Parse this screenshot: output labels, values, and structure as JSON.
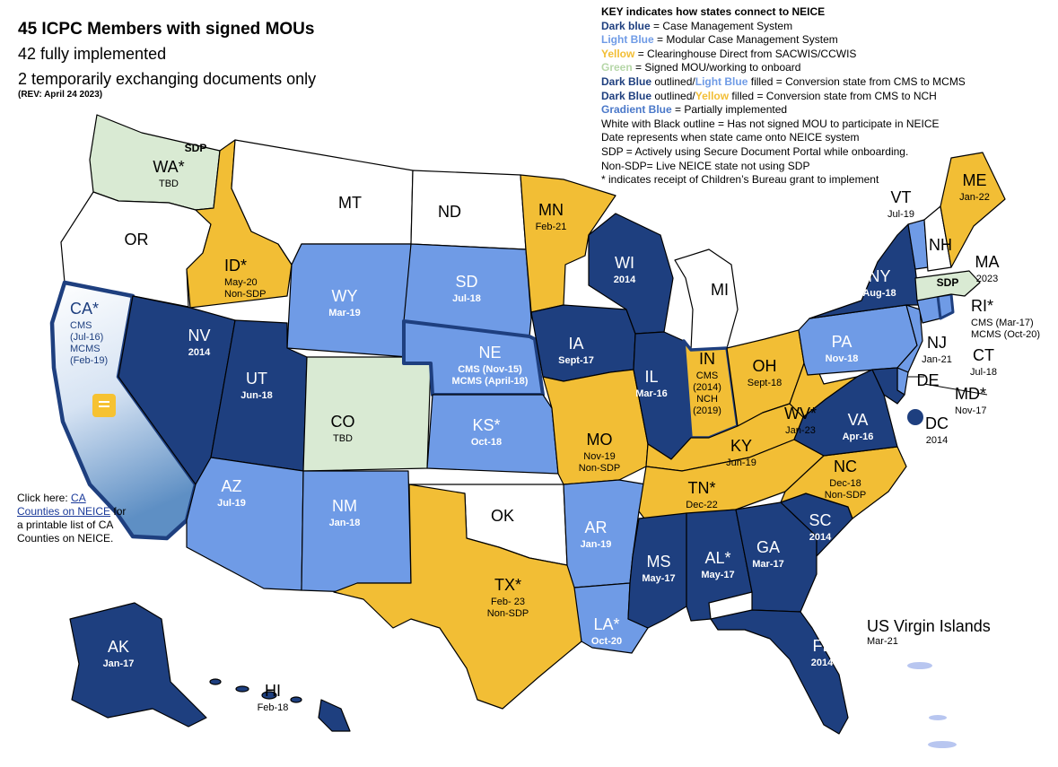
{
  "header": {
    "title": "45 ICPC Members with signed MOUs",
    "line1": "42 fully implemented",
    "line2": "2 temporarily exchanging documents only",
    "rev": "(REV: April 24 2023)"
  },
  "colors": {
    "dark_blue": "#1e3f7f",
    "light_blue": "#6f9be6",
    "yellow": "#f2be35",
    "green": "#d9ead3",
    "white": "#ffffff",
    "border": "#000000"
  },
  "key": {
    "heading": "KEY indicates how states connect to NEICE",
    "rows": [
      {
        "pre": "Dark blue",
        "pre_color": "#1e3f7f",
        "text": " = Case Management System"
      },
      {
        "pre": "Light Blue",
        "pre_color": "#6f9be6",
        "text": " = Modular Case Management System"
      },
      {
        "pre": "Yellow",
        "pre_color": "#f2be35",
        "text": " = Clearinghouse Direct from SACWIS/CCWIS"
      },
      {
        "pre": "Green",
        "pre_color": "#b6d7a8",
        "text": " = Signed MOU/working to onboard"
      },
      {
        "pre": "Dark Blue",
        "pre_color": "#1e3f7f",
        "mid": " outlined/",
        "pre2": "Light Blue",
        "pre2_color": "#6f9be6",
        "text": " filled = Conversion state from CMS to MCMS"
      },
      {
        "pre": "Dark Blue",
        "pre_color": "#1e3f7f",
        "mid": " outlined/",
        "pre2": "Yellow",
        "pre2_color": "#f2be35",
        "text": " filled = Conversion state from CMS to NCH"
      },
      {
        "pre": "Gradient Blue",
        "pre_color": "#4a78c9",
        "text": " = Partially implemented"
      },
      {
        "text": "White with Black outline = Has not  signed MOU to participate in NEICE"
      },
      {
        "text": "Date represents when state came onto NEICE system"
      },
      {
        "text": "SDP = Actively using Secure Document Portal while onboarding."
      },
      {
        "text": "Non-SDP= Live NEICE state not using SDP"
      },
      {
        "text": "* indicates receipt of Children’s Bureau grant to implement"
      }
    ]
  },
  "note": {
    "pre": "Click here: ",
    "link": "CA Counties on NEICE",
    "post": " for a printable list of CA Counties on NEICE."
  },
  "usvi": {
    "name": "US Virgin Islands",
    "date": "Mar-21"
  },
  "sdp_tag": "SDP",
  "states": {
    "WA": {
      "name": "WA*",
      "lines": [
        "TBD"
      ]
    },
    "OR": {
      "name": "OR",
      "lines": []
    },
    "CA": {
      "name": "CA*",
      "lines": [
        "CMS",
        "(Jul-16)",
        "MCMS",
        "(Feb-19)"
      ]
    },
    "ID": {
      "name": "ID*",
      "lines": [
        "May-20",
        "Non-SDP"
      ]
    },
    "NV": {
      "name": "NV",
      "lines": [
        "2014"
      ]
    },
    "MT": {
      "name": "MT",
      "lines": []
    },
    "WY": {
      "name": "WY",
      "lines": [
        "Mar-19"
      ]
    },
    "UT": {
      "name": "UT",
      "lines": [
        "Jun-18"
      ]
    },
    "CO": {
      "name": "CO",
      "lines": [
        "TBD"
      ]
    },
    "AZ": {
      "name": "AZ",
      "lines": [
        "Jul-19"
      ]
    },
    "NM": {
      "name": "NM",
      "lines": [
        "Jan-18"
      ]
    },
    "ND": {
      "name": "ND",
      "lines": []
    },
    "SD": {
      "name": "SD",
      "lines": [
        "Jul-18"
      ]
    },
    "NE": {
      "name": "NE",
      "lines": [
        "CMS (Nov-15)",
        "MCMS (April-18)"
      ]
    },
    "KS": {
      "name": "KS*",
      "lines": [
        "Oct-18"
      ]
    },
    "OK": {
      "name": "OK",
      "lines": []
    },
    "TX": {
      "name": "TX*",
      "lines": [
        "Feb- 23",
        "Non-SDP"
      ]
    },
    "MN": {
      "name": "MN",
      "lines": [
        "Feb-21"
      ]
    },
    "IA": {
      "name": "IA",
      "lines": [
        "Sept-17"
      ]
    },
    "MO": {
      "name": "MO",
      "lines": [
        "Nov-19",
        "Non-SDP"
      ]
    },
    "AR": {
      "name": "AR",
      "lines": [
        "Jan-19"
      ]
    },
    "LA": {
      "name": "LA*",
      "lines": [
        "Oct-20"
      ]
    },
    "WI": {
      "name": "WI",
      "lines": [
        "2014"
      ]
    },
    "IL": {
      "name": "IL",
      "lines": [
        "Mar-16"
      ]
    },
    "MI": {
      "name": "MI",
      "lines": []
    },
    "IN": {
      "name": "IN",
      "lines": [
        "CMS",
        "(2014)",
        "NCH",
        "(2019)"
      ]
    },
    "OH": {
      "name": "OH",
      "lines": [
        "Sept-18"
      ]
    },
    "KY": {
      "name": "KY",
      "lines": [
        "Jun-19"
      ]
    },
    "TN": {
      "name": "TN*",
      "lines": [
        "Dec-22"
      ]
    },
    "MS": {
      "name": "MS",
      "lines": [
        "May-17"
      ]
    },
    "AL": {
      "name": "AL*",
      "lines": [
        "May-17"
      ]
    },
    "GA": {
      "name": "GA",
      "lines": [
        "Mar-17"
      ]
    },
    "FL": {
      "name": "FL",
      "lines": [
        "2014"
      ]
    },
    "SC": {
      "name": "SC",
      "lines": [
        "2014"
      ]
    },
    "NC": {
      "name": "NC",
      "lines": [
        "Dec-18",
        "Non-SDP"
      ]
    },
    "VA": {
      "name": "VA",
      "lines": [
        "Apr-16"
      ]
    },
    "WV": {
      "name": "WV*",
      "lines": [
        "Jan-23"
      ]
    },
    "PA": {
      "name": "PA",
      "lines": [
        "Nov-18"
      ]
    },
    "NY": {
      "name": "NY",
      "lines": [
        "Aug-18"
      ]
    },
    "NJ": {
      "name": "NJ",
      "lines": [
        "Jan-21"
      ]
    },
    "DE": {
      "name": "DE",
      "lines": []
    },
    "MD": {
      "name": "MD*",
      "lines": [
        "Nov-17"
      ]
    },
    "DC": {
      "name": "DC",
      "lines": [
        "2014"
      ]
    },
    "CT": {
      "name": "CT",
      "lines": [
        "Jul-18"
      ]
    },
    "RI": {
      "name": "RI*",
      "lines": [
        "CMS (Mar-17)",
        "MCMS (Oct-20)"
      ]
    },
    "MA": {
      "name": "MA",
      "lines": [
        "2023"
      ]
    },
    "VT": {
      "name": "VT",
      "lines": [
        "Jul-19"
      ]
    },
    "NH": {
      "name": "NH",
      "lines": []
    },
    "ME": {
      "name": "ME",
      "lines": [
        "Jan-22"
      ]
    },
    "AK": {
      "name": "AK",
      "lines": [
        "Jan-17"
      ]
    },
    "HI": {
      "name": "HI",
      "lines": [
        "Feb-18"
      ]
    }
  }
}
